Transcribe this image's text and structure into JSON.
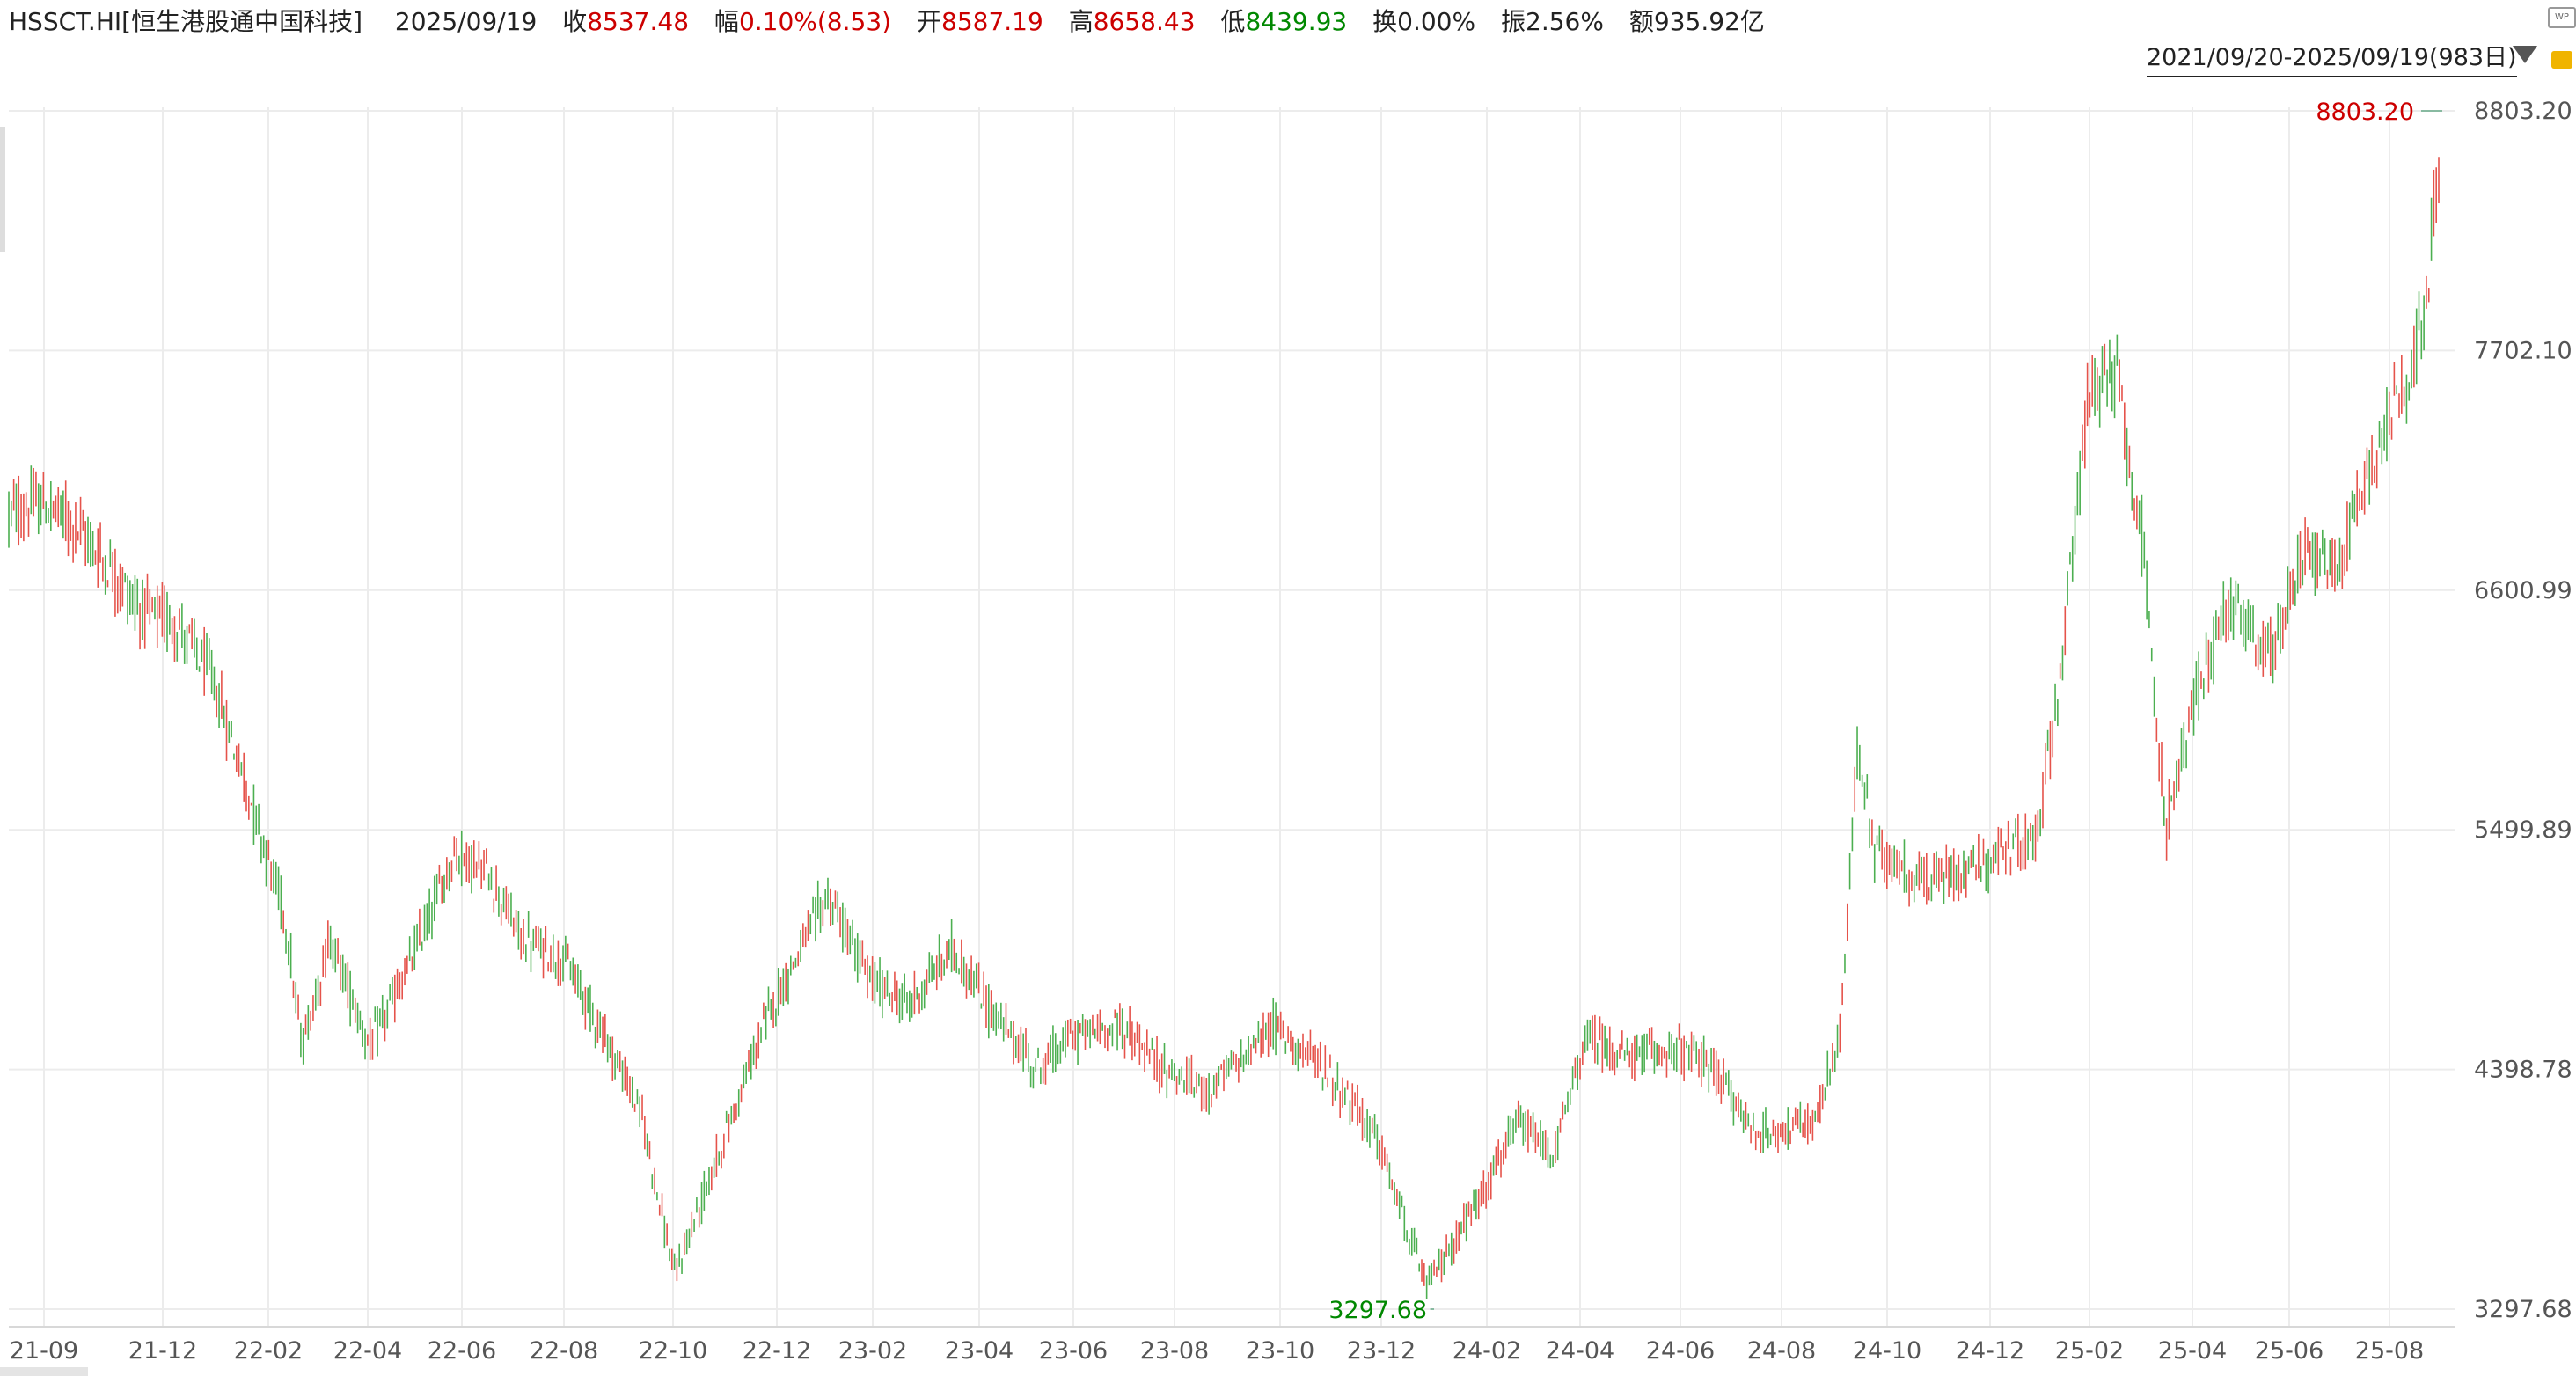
{
  "header": {
    "symbol": "HSSCT.HI[恒生港股通中国科技]",
    "date": "2025/09/19",
    "close_label": "收",
    "close_value": "8537.48",
    "change_label": "幅",
    "change_value": "0.10%(8.53)",
    "open_label": "开",
    "open_value": "8587.19",
    "high_label": "高",
    "high_value": "8658.43",
    "low_label": "低",
    "low_value": "8439.93",
    "turnover_label": "换",
    "turnover_value": "0.00%",
    "amplitude_label": "振",
    "amplitude_value": "2.56%",
    "amount_label": "额",
    "amount_value": "935.92亿"
  },
  "range_selector": {
    "label": "2021/09/20-2025/09/19(983日)"
  },
  "icons": {
    "top_right": "wp-icon",
    "lock": "lock-icon",
    "range_dropdown": "triangle-down-icon"
  },
  "colors": {
    "up": "#e5534b",
    "down": "#4caf50",
    "grid": "#ececec",
    "axis_text": "#555555",
    "label_up": "#cc0000",
    "label_down": "#008800"
  },
  "chart_data": {
    "type": "candlestick",
    "title": "",
    "xlabel": "",
    "ylabel": "",
    "y_ticks": [
      "8803.20",
      "7702.10",
      "6600.99",
      "5499.89",
      "4398.78",
      "3297.68"
    ],
    "ylim": [
      3297.68,
      8803.2
    ],
    "x_ticks": [
      "21-09",
      "21-12",
      "22-02",
      "22-04",
      "22-06",
      "22-08",
      "22-10",
      "22-12",
      "23-02",
      "23-04",
      "23-06",
      "23-08",
      "23-10",
      "23-12",
      "24-02",
      "24-04",
      "24-06",
      "24-08",
      "24-10",
      "24-12",
      "25-02",
      "25-04",
      "25-06",
      "25-08"
    ],
    "grid": true,
    "max_marker": {
      "label": "8803.20",
      "value": 8803.2,
      "date": "2025/09"
    },
    "min_marker": {
      "label": "3297.68",
      "value": 3297.68,
      "date": "2024/01"
    },
    "trend_points": [
      [
        "2021-09-20",
        6950
      ],
      [
        "2021-10-10",
        7000
      ],
      [
        "2021-10-30",
        6900
      ],
      [
        "2021-11-20",
        6700
      ],
      [
        "2021-12-10",
        6500
      ],
      [
        "2021-12-30",
        6450
      ],
      [
        "2022-01-20",
        6200
      ],
      [
        "2022-02-10",
        5700
      ],
      [
        "2022-03-05",
        5100
      ],
      [
        "2022-03-15",
        4500
      ],
      [
        "2022-04-01",
        5000
      ],
      [
        "2022-04-25",
        4500
      ],
      [
        "2022-05-20",
        4900
      ],
      [
        "2022-06-15",
        5400
      ],
      [
        "2022-07-05",
        5300
      ],
      [
        "2022-07-25",
        5000
      ],
      [
        "2022-08-20",
        4900
      ],
      [
        "2022-09-10",
        4600
      ],
      [
        "2022-10-05",
        4200
      ],
      [
        "2022-10-25",
        3450
      ],
      [
        "2022-11-20",
        4000
      ],
      [
        "2022-12-20",
        4650
      ],
      [
        "2023-01-25",
        5200
      ],
      [
        "2023-02-20",
        4800
      ],
      [
        "2023-03-15",
        4700
      ],
      [
        "2023-04-10",
        4950
      ],
      [
        "2023-05-05",
        4650
      ],
      [
        "2023-05-31",
        4400
      ],
      [
        "2023-06-20",
        4550
      ],
      [
        "2023-07-20",
        4600
      ],
      [
        "2023-08-15",
        4400
      ],
      [
        "2023-09-10",
        4300
      ],
      [
        "2023-10-01",
        4450
      ],
      [
        "2023-10-20",
        4600
      ],
      [
        "2023-11-20",
        4400
      ],
      [
        "2023-12-20",
        4100
      ],
      [
        "2024-01-20",
        3400
      ],
      [
        "2024-02-20",
        3800
      ],
      [
        "2024-03-15",
        4150
      ],
      [
        "2024-04-05",
        4000
      ],
      [
        "2024-04-25",
        4550
      ],
      [
        "2024-05-20",
        4450
      ],
      [
        "2024-06-15",
        4500
      ],
      [
        "2024-07-10",
        4400
      ],
      [
        "2024-08-05",
        4100
      ],
      [
        "2024-09-10",
        4150
      ],
      [
        "2024-09-25",
        4600
      ],
      [
        "2024-10-05",
        5900
      ],
      [
        "2024-10-15",
        5400
      ],
      [
        "2024-11-15",
        5250
      ],
      [
        "2024-12-15",
        5350
      ],
      [
        "2025-01-20",
        5450
      ],
      [
        "2025-02-05",
        6300
      ],
      [
        "2025-02-20",
        7500
      ],
      [
        "2025-03-10",
        7600
      ],
      [
        "2025-03-25",
        6800
      ],
      [
        "2025-04-08",
        5500
      ],
      [
        "2025-04-25",
        6100
      ],
      [
        "2025-05-15",
        6550
      ],
      [
        "2025-06-10",
        6300
      ],
      [
        "2025-06-30",
        6800
      ],
      [
        "2025-07-20",
        6700
      ],
      [
        "2025-08-05",
        7100
      ],
      [
        "2025-08-25",
        7500
      ],
      [
        "2025-09-10",
        7800
      ],
      [
        "2025-09-19",
        8550
      ]
    ]
  }
}
